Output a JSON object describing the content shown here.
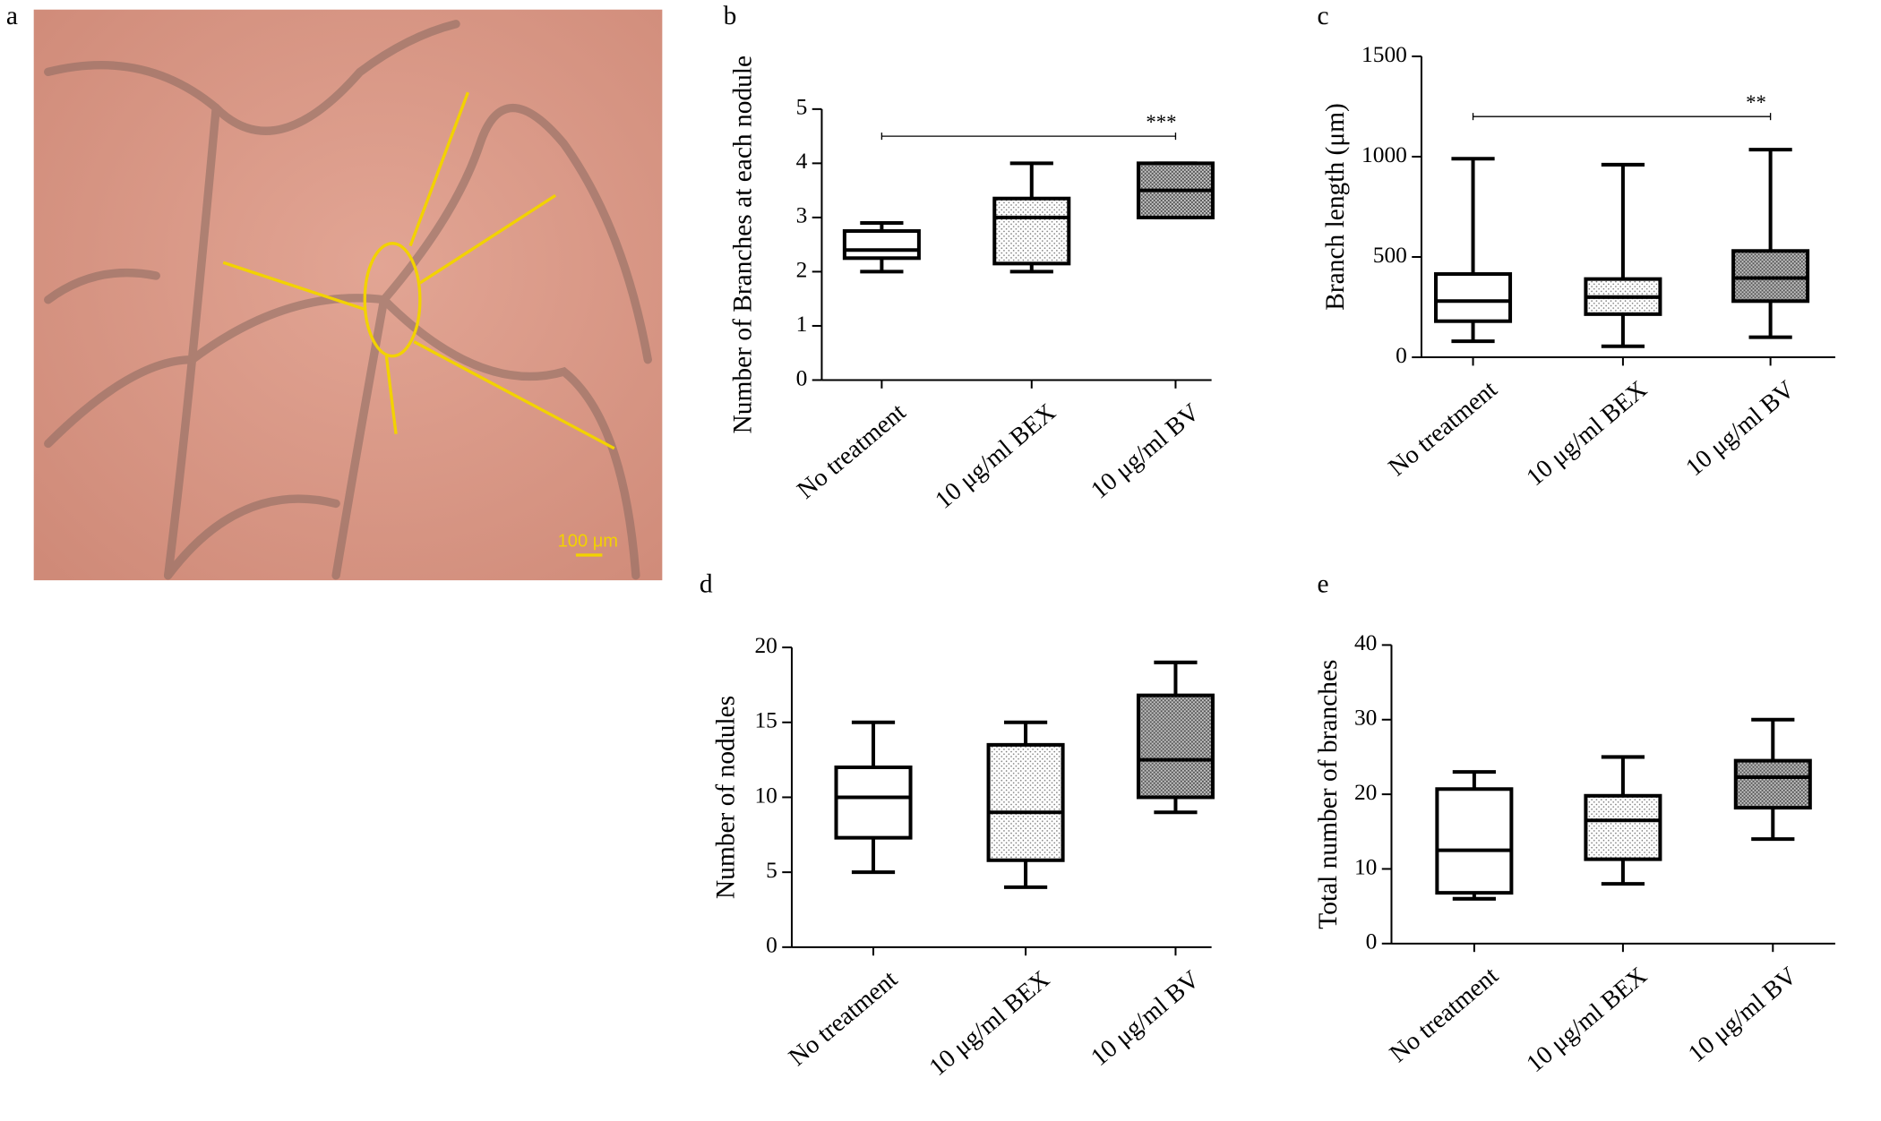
{
  "image_panel": {
    "panel_label": "a",
    "scale_bar": "100 μm"
  },
  "chart_data": [
    {
      "type": "box",
      "panel_label": "b",
      "ylabel": "Number of Branches at each nodule",
      "categories": [
        "No treatment",
        "10 μg/ml BEX",
        "10  μg/ml BV"
      ],
      "stats": [
        {
          "min": 2,
          "q1": 2.25,
          "median": 2.4,
          "q3": 2.75,
          "max": 2.9
        },
        {
          "min": 2,
          "q1": 2.15,
          "median": 3,
          "q3": 3.35,
          "max": 4
        },
        {
          "min": 3,
          "q1": 3,
          "median": 3.5,
          "q3": 4,
          "max": 4
        }
      ],
      "fills": [
        "white",
        "dots",
        "crosshatch"
      ],
      "ylim": [
        0,
        5
      ],
      "yticks": [
        0,
        1,
        2,
        3,
        4,
        5
      ],
      "significance": {
        "label": "***",
        "from": 0,
        "to": 2,
        "y": 4.5
      }
    },
    {
      "type": "box",
      "panel_label": "c",
      "ylabel": "Branch length (μm)",
      "categories": [
        "No treatment",
        "10 μg/ml BEX",
        "10 μg/ml BV"
      ],
      "stats": [
        {
          "min": 80,
          "q1": 180,
          "median": 280,
          "q3": 415,
          "max": 990
        },
        {
          "min": 55,
          "q1": 215,
          "median": 300,
          "q3": 390,
          "max": 960
        },
        {
          "min": 100,
          "q1": 280,
          "median": 395,
          "q3": 530,
          "max": 1035
        }
      ],
      "fills": [
        "white",
        "dots",
        "crosshatch"
      ],
      "ylim": [
        0,
        1500
      ],
      "yticks": [
        0,
        500,
        1000,
        1500
      ],
      "significance": {
        "label": "**",
        "from": 0,
        "to": 2,
        "y": 1200
      }
    },
    {
      "type": "box",
      "panel_label": "d",
      "ylabel": "Number of nodules",
      "categories": [
        "No treatment",
        "10 μg/ml BEX",
        "10  μg/ml BV"
      ],
      "stats": [
        {
          "min": 5,
          "q1": 7.3,
          "median": 10,
          "q3": 12,
          "max": 15
        },
        {
          "min": 4,
          "q1": 5.8,
          "median": 9,
          "q3": 13.5,
          "max": 15
        },
        {
          "min": 9,
          "q1": 10,
          "median": 12.5,
          "q3": 16.8,
          "max": 19
        }
      ],
      "fills": [
        "white",
        "dots",
        "crosshatch"
      ],
      "ylim": [
        0,
        20
      ],
      "yticks": [
        0,
        5,
        10,
        15,
        20
      ]
    },
    {
      "type": "box",
      "panel_label": "e",
      "ylabel": "Total number of branches",
      "categories": [
        "No treatment",
        "10  μg/ml BEX",
        "10  μg/ml BV"
      ],
      "stats": [
        {
          "min": 6,
          "q1": 6.8,
          "median": 12.5,
          "q3": 20.7,
          "max": 23
        },
        {
          "min": 8,
          "q1": 11.3,
          "median": 16.5,
          "q3": 19.8,
          "max": 25
        },
        {
          "min": 14,
          "q1": 18.2,
          "median": 22.3,
          "q3": 24.5,
          "max": 30
        }
      ],
      "fills": [
        "white",
        "dots",
        "crosshatch"
      ],
      "ylim": [
        0,
        40
      ],
      "yticks": [
        0,
        10,
        20,
        30,
        40
      ]
    }
  ]
}
